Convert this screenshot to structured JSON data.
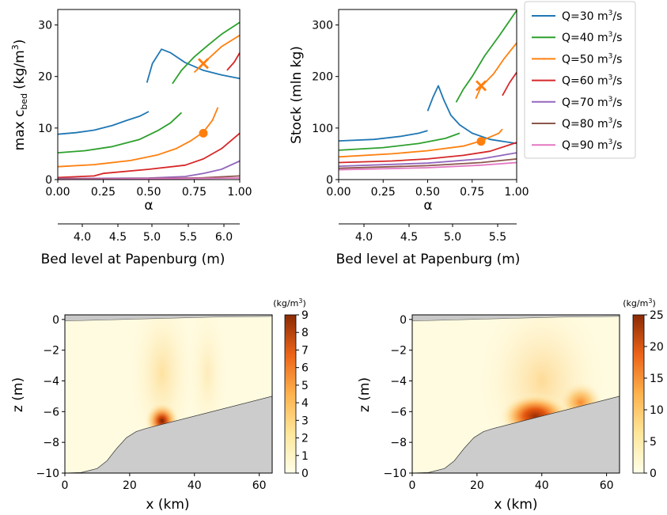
{
  "chart_data": [
    {
      "id": "a",
      "type": "line",
      "ylabel": "max c",
      "ylabel_sub": "bed",
      "ylabel_unit": "(kg/m",
      "ylabel_unit_sup": "3",
      "ylabel_unit_close": ")",
      "xlabel": "α",
      "xlabel2": "Bed level at Papenburg (m)",
      "xlim": [
        0,
        1
      ],
      "ylim": [
        0,
        33
      ],
      "xticks": [
        "0.00",
        "0.25",
        "0.50",
        "0.75",
        "1.00"
      ],
      "yticks": [
        "0",
        "10",
        "20",
        "30"
      ],
      "x2ticks": [
        "4.0",
        "4.5",
        "5.0",
        "5.5",
        "6.0"
      ],
      "series": [
        {
          "name": "Q=30",
          "color": "#1f77b4",
          "segments": [
            [
              [
                0,
                8.8
              ],
              [
                0.1,
                9.1
              ],
              [
                0.2,
                9.6
              ],
              [
                0.3,
                10.5
              ],
              [
                0.38,
                11.5
              ],
              [
                0.45,
                12.3
              ],
              [
                0.5,
                13.2
              ]
            ],
            [
              [
                0.49,
                18.8
              ],
              [
                0.52,
                22.5
              ],
              [
                0.57,
                25.3
              ],
              [
                0.62,
                24.6
              ],
              [
                0.7,
                22.7
              ],
              [
                0.8,
                21.2
              ],
              [
                0.9,
                20.3
              ],
              [
                1.0,
                19.6
              ]
            ]
          ]
        },
        {
          "name": "Q=40",
          "color": "#2ca02c",
          "segments": [
            [
              [
                0,
                5.2
              ],
              [
                0.15,
                5.6
              ],
              [
                0.3,
                6.4
              ],
              [
                0.45,
                7.8
              ],
              [
                0.55,
                9.5
              ],
              [
                0.62,
                11
              ],
              [
                0.68,
                13
              ]
            ],
            [
              [
                0.63,
                18.6
              ],
              [
                0.68,
                21.2
              ],
              [
                0.75,
                23.8
              ],
              [
                0.83,
                26.2
              ],
              [
                0.9,
                28.2
              ],
              [
                1.0,
                30.5
              ]
            ]
          ]
        },
        {
          "name": "Q=50",
          "color": "#ff7f0e",
          "segments": [
            [
              [
                0,
                2.5
              ],
              [
                0.2,
                2.9
              ],
              [
                0.4,
                3.7
              ],
              [
                0.55,
                4.8
              ],
              [
                0.65,
                6.0
              ],
              [
                0.73,
                7.5
              ],
              [
                0.8,
                9.2
              ],
              [
                0.85,
                11.5
              ],
              [
                0.88,
                14
              ]
            ],
            [
              [
                0.75,
                20.8
              ],
              [
                0.82,
                23.2
              ],
              [
                0.9,
                25.8
              ],
              [
                1.0,
                28
              ]
            ]
          ]
        },
        {
          "name": "Q=60",
          "color": "#d62728",
          "segments": [
            [
              [
                0,
                0.4
              ],
              [
                0.2,
                0.7
              ],
              [
                0.25,
                1.2
              ],
              [
                0.5,
                2.0
              ],
              [
                0.7,
                2.8
              ],
              [
                0.8,
                4.0
              ],
              [
                0.9,
                6.0
              ],
              [
                1.0,
                9.0
              ]
            ],
            [
              [
                0.93,
                21.2
              ],
              [
                0.97,
                22.8
              ],
              [
                1.0,
                24.6
              ]
            ]
          ]
        },
        {
          "name": "Q=70",
          "color": "#9467bd",
          "segments": [
            [
              [
                0,
                0.2
              ],
              [
                0.5,
                0.3
              ],
              [
                0.7,
                0.6
              ],
              [
                0.8,
                1.2
              ],
              [
                0.9,
                2.0
              ],
              [
                1.0,
                3.6
              ]
            ]
          ]
        },
        {
          "name": "Q=80",
          "color": "#8c564b",
          "segments": [
            [
              [
                0,
                0.15
              ],
              [
                0.5,
                0.2
              ],
              [
                0.8,
                0.35
              ],
              [
                1.0,
                0.7
              ]
            ]
          ]
        },
        {
          "name": "Q=90",
          "color": "#e377c2",
          "segments": [
            [
              [
                0,
                0.05
              ],
              [
                1.0,
                0.3
              ]
            ]
          ]
        }
      ],
      "markers": [
        {
          "shape": "x",
          "x": 0.8,
          "y": 22.5,
          "color": "#ff7f0e"
        },
        {
          "shape": "circle",
          "x": 0.8,
          "y": 9.0,
          "color": "#ff7f0e"
        }
      ]
    },
    {
      "id": "b",
      "type": "line",
      "ylabel": "Stock (mln kg)",
      "xlabel": "α",
      "xlabel2": "Bed level at Papenburg (m)",
      "xlim": [
        0,
        1
      ],
      "ylim": [
        0,
        330
      ],
      "xticks": [
        "0.00",
        "0.25",
        "0.50",
        "0.75",
        "1.00"
      ],
      "yticks": [
        "0",
        "100",
        "200",
        "300"
      ],
      "x2ticks": [
        "4.0",
        "4.5",
        "5.0",
        "5.5",
        "6.0"
      ],
      "series": [
        {
          "name": "Q=30",
          "color": "#1f77b4",
          "segments": [
            [
              [
                0,
                75
              ],
              [
                0.2,
                78
              ],
              [
                0.35,
                84
              ],
              [
                0.45,
                90
              ],
              [
                0.5,
                95
              ]
            ],
            [
              [
                0.5,
                133
              ],
              [
                0.53,
                160
              ],
              [
                0.56,
                182
              ],
              [
                0.59,
                155
              ],
              [
                0.63,
                125
              ],
              [
                0.68,
                106
              ],
              [
                0.75,
                90
              ],
              [
                0.85,
                78
              ],
              [
                1.0,
                70
              ]
            ]
          ]
        },
        {
          "name": "Q=40",
          "color": "#2ca02c",
          "segments": [
            [
              [
                0,
                57
              ],
              [
                0.25,
                62
              ],
              [
                0.45,
                70
              ],
              [
                0.6,
                80
              ],
              [
                0.68,
                90
              ]
            ],
            [
              [
                0.66,
                150
              ],
              [
                0.7,
                175
              ],
              [
                0.75,
                200
              ],
              [
                0.82,
                240
              ],
              [
                0.9,
                278
              ],
              [
                1.0,
                328
              ]
            ]
          ]
        },
        {
          "name": "Q=50",
          "color": "#ff7f0e",
          "segments": [
            [
              [
                0,
                44
              ],
              [
                0.3,
                50
              ],
              [
                0.5,
                56
              ],
              [
                0.7,
                65
              ],
              [
                0.8,
                75
              ],
              [
                0.9,
                90
              ],
              [
                0.92,
                98
              ]
            ],
            [
              [
                0.77,
                157
              ],
              [
                0.8,
                180
              ],
              [
                0.87,
                205
              ],
              [
                0.93,
                235
              ],
              [
                1.0,
                265
              ]
            ]
          ]
        },
        {
          "name": "Q=60",
          "color": "#d62728",
          "segments": [
            [
              [
                0,
                33
              ],
              [
                0.3,
                36
              ],
              [
                0.5,
                40
              ],
              [
                0.7,
                47
              ],
              [
                0.85,
                55
              ],
              [
                1.0,
                72
              ]
            ],
            [
              [
                0.92,
                163
              ],
              [
                0.96,
                188
              ],
              [
                1.0,
                208
              ]
            ]
          ]
        },
        {
          "name": "Q=70",
          "color": "#9467bd",
          "segments": [
            [
              [
                0,
                26
              ],
              [
                0.5,
                32
              ],
              [
                0.8,
                40
              ],
              [
                1.0,
                52
              ]
            ]
          ]
        },
        {
          "name": "Q=80",
          "color": "#8c564b",
          "segments": [
            [
              [
                0,
                22
              ],
              [
                0.5,
                27
              ],
              [
                0.8,
                33
              ],
              [
                1.0,
                40
              ]
            ]
          ]
        },
        {
          "name": "Q=90",
          "color": "#e377c2",
          "segments": [
            [
              [
                0,
                19
              ],
              [
                0.5,
                23
              ],
              [
                0.8,
                28
              ],
              [
                1.0,
                33
              ]
            ]
          ]
        }
      ],
      "markers": [
        {
          "shape": "x",
          "x": 0.8,
          "y": 182,
          "color": "#ff7f0e"
        },
        {
          "shape": "circle",
          "x": 0.8,
          "y": 74,
          "color": "#ff7f0e"
        }
      ]
    },
    {
      "id": "c",
      "type": "heatmap",
      "xlabel": "x (km)",
      "ylabel": "z (m)",
      "xlim": [
        0,
        64
      ],
      "ylim": [
        -10,
        0.3
      ],
      "xticks": [
        "0",
        "20",
        "40",
        "60"
      ],
      "yticks": [
        "0",
        "−2",
        "−4",
        "−6",
        "−8",
        "−10"
      ],
      "colorbar": {
        "unit": "(kg/m",
        "unit_sup": "3",
        "unit_close": ")",
        "max": 9,
        "ticks": [
          "0",
          "1",
          "2",
          "3",
          "4",
          "5",
          "6",
          "7",
          "8",
          "9"
        ]
      },
      "peak": {
        "x": 30,
        "z": -6.6,
        "value": 9
      }
    },
    {
      "id": "d",
      "type": "heatmap",
      "xlabel": "x (km)",
      "ylabel": "z (m)",
      "xlim": [
        0,
        64
      ],
      "ylim": [
        -10,
        0.3
      ],
      "xticks": [
        "0",
        "20",
        "40",
        "60"
      ],
      "yticks": [
        "0",
        "−2",
        "−4",
        "−6",
        "−8",
        "−10"
      ],
      "colorbar": {
        "unit": "(kg/m",
        "unit_sup": "3",
        "unit_close": ")",
        "max": 25,
        "ticks": [
          "0",
          "5",
          "10",
          "15",
          "20",
          "25"
        ]
      },
      "peak": {
        "x": 38,
        "z": -6.3,
        "value": 25
      }
    }
  ],
  "legend": {
    "placement": "right of top-right panel",
    "items": [
      {
        "label": "Q=30 m",
        "sup": "3",
        "tail": "/s",
        "color": "#1f77b4"
      },
      {
        "label": "Q=40 m",
        "sup": "3",
        "tail": "/s",
        "color": "#2ca02c"
      },
      {
        "label": "Q=50 m",
        "sup": "3",
        "tail": "/s",
        "color": "#ff7f0e"
      },
      {
        "label": "Q=60 m",
        "sup": "3",
        "tail": "/s",
        "color": "#d62728"
      },
      {
        "label": "Q=70 m",
        "sup": "3",
        "tail": "/s",
        "color": "#9467bd"
      },
      {
        "label": "Q=80 m",
        "sup": "3",
        "tail": "/s",
        "color": "#8c564b"
      },
      {
        "label": "Q=90 m",
        "sup": "3",
        "tail": "/s",
        "color": "#e377c2"
      }
    ]
  }
}
